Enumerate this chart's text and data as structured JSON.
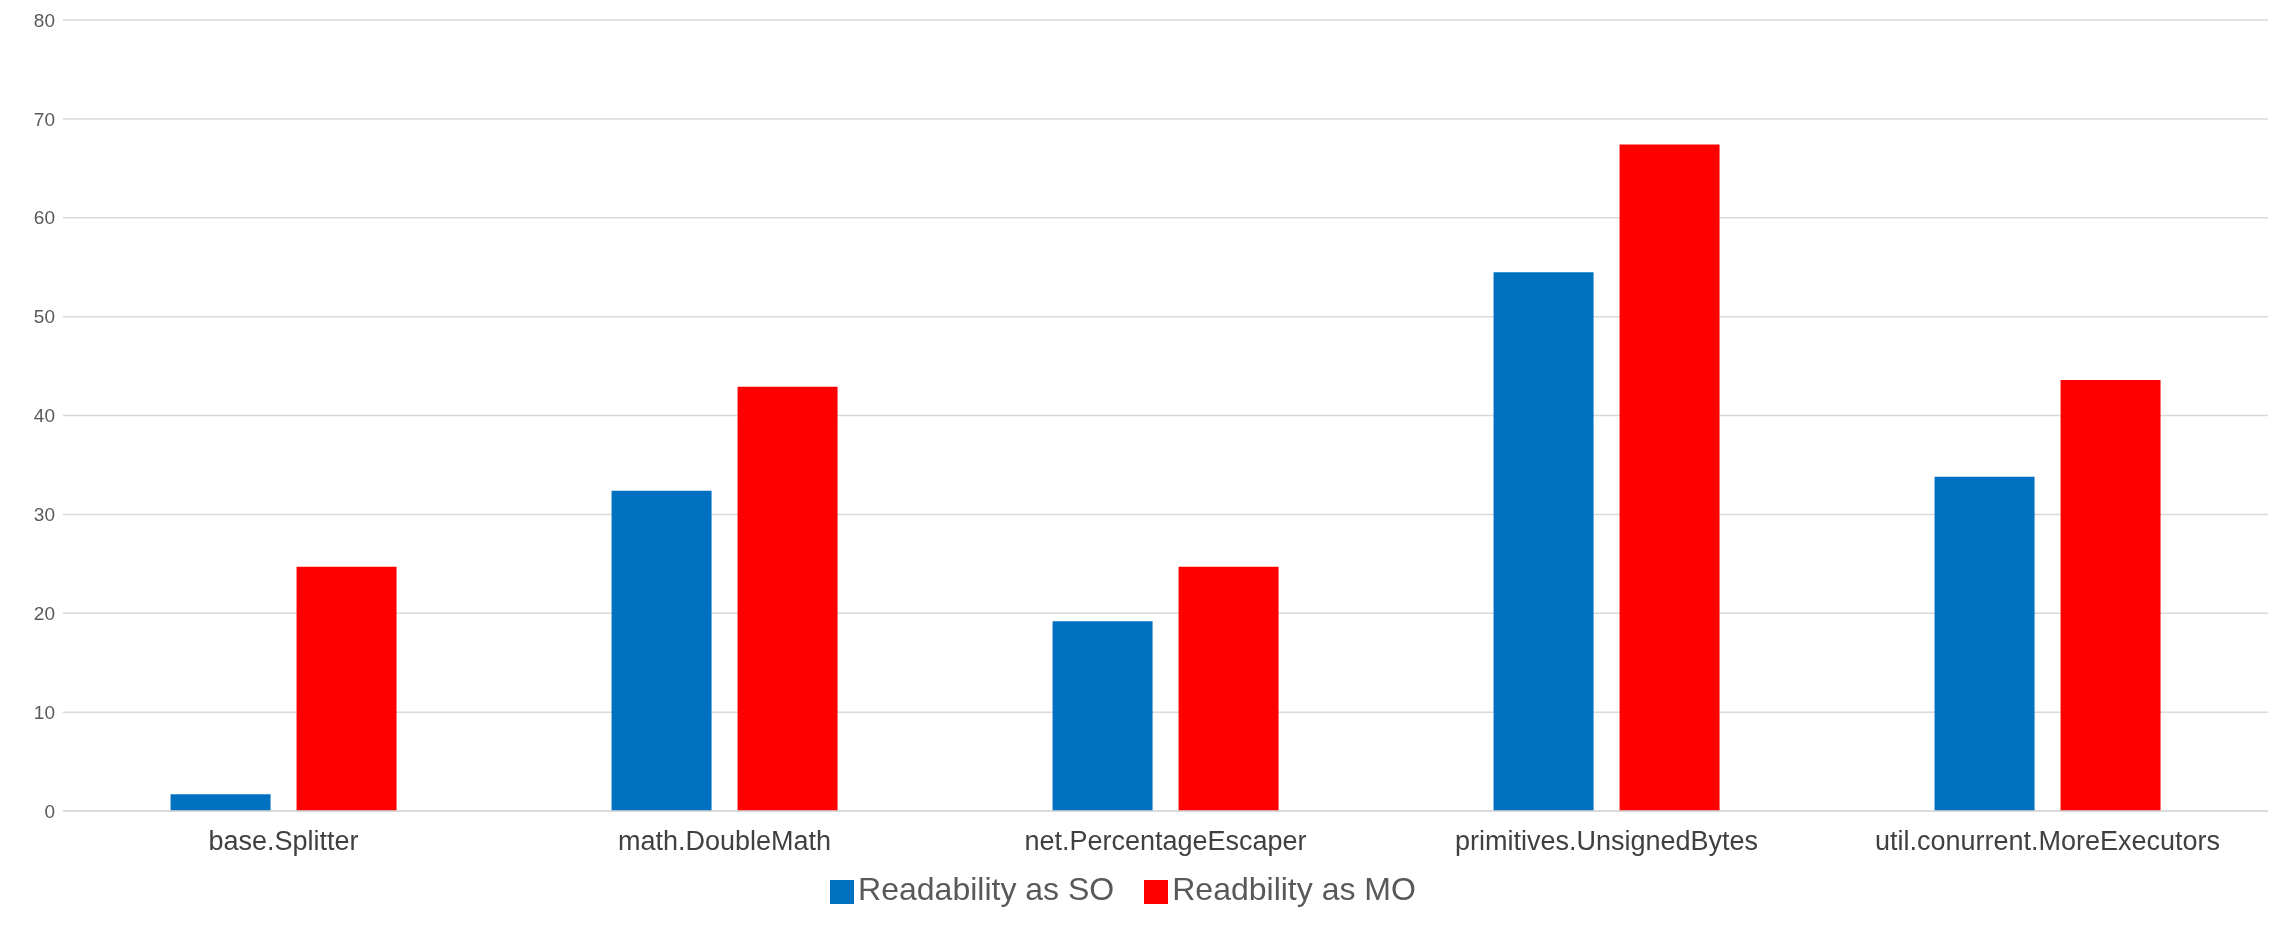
{
  "chart_data": {
    "type": "bar",
    "categories": [
      "base.Splitter",
      "math.DoubleMath",
      "net.PercentageEscaper",
      "primitives.UnsignedBytes",
      "util.conurrent.MoreExecutors"
    ],
    "series": [
      {
        "name": "Readability as SO",
        "color": "#0070c0",
        "values": [
          1.7,
          32.4,
          19.2,
          54.5,
          33.8
        ]
      },
      {
        "name": "Readbility as MO",
        "color": "#ff0000",
        "values": [
          24.7,
          42.9,
          24.7,
          67.4,
          43.6
        ]
      }
    ],
    "ylim": [
      0,
      80
    ],
    "yticks": [
      0,
      10,
      20,
      30,
      40,
      50,
      60,
      70,
      80
    ],
    "grid": "y",
    "legend": "bottom"
  }
}
